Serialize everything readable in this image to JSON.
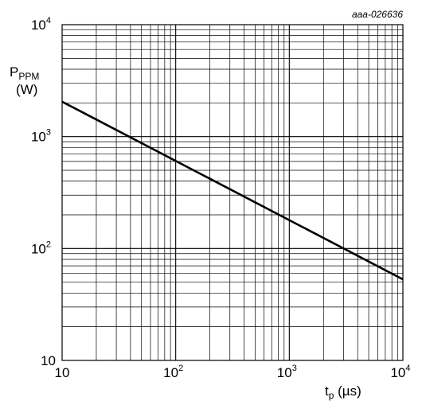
{
  "chart_data": {
    "type": "line",
    "reference": "aaa-026636",
    "x_axis": {
      "label_main": "t",
      "label_sub": "p",
      "label_unit": " (µs)",
      "scale": "log",
      "range": [
        10,
        10000
      ],
      "ticks": [
        {
          "value": 10,
          "base": "10",
          "exp": ""
        },
        {
          "value": 100,
          "base": "10",
          "exp": "2"
        },
        {
          "value": 1000,
          "base": "10",
          "exp": "3"
        },
        {
          "value": 10000,
          "base": "10",
          "exp": "4"
        }
      ]
    },
    "y_axis": {
      "label_main": "P",
      "label_sub": "PPM",
      "label_unit": "(W)",
      "scale": "log",
      "range": [
        10,
        10000
      ],
      "ticks": [
        {
          "value": 10,
          "base": "10",
          "exp": ""
        },
        {
          "value": 100,
          "base": "10",
          "exp": "2"
        },
        {
          "value": 1000,
          "base": "10",
          "exp": "3"
        },
        {
          "value": 10000,
          "base": "10",
          "exp": "4"
        }
      ]
    },
    "grid": true,
    "series": [
      {
        "x": [
          10,
          10000
        ],
        "y": [
          2050,
          53
        ]
      }
    ]
  },
  "colors": {
    "line": "#000000",
    "grid": "#000000",
    "background": "#ffffff"
  }
}
